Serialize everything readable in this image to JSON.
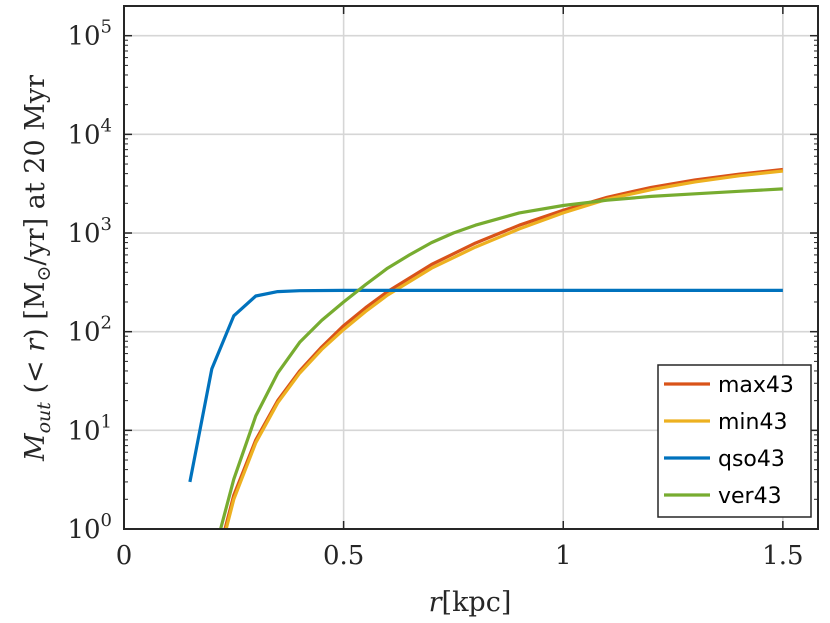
{
  "chart_data": {
    "type": "line",
    "x_scale": "linear",
    "y_scale": "log",
    "xlim": [
      0,
      1.58
    ],
    "ylim": [
      1,
      200000
    ],
    "grid": true,
    "legend_position": "bottom-right",
    "xlabel": "r[kpc]",
    "ylabel": "Ṁout (< r) [M⊙/yr] at 20 Myr",
    "x_ticks": [
      {
        "value": 0,
        "label": "0"
      },
      {
        "value": 0.5,
        "label": "0.5"
      },
      {
        "value": 1,
        "label": "1"
      },
      {
        "value": 1.5,
        "label": "1.5"
      }
    ],
    "y_ticks": [
      {
        "value": 1,
        "exp": "0"
      },
      {
        "value": 10,
        "exp": "1"
      },
      {
        "value": 100,
        "exp": "2"
      },
      {
        "value": 1000,
        "exp": "3"
      },
      {
        "value": 10000,
        "exp": "4"
      },
      {
        "value": 100000,
        "exp": "5"
      }
    ],
    "series": [
      {
        "name": "max43",
        "color": "#D95319",
        "x": [
          0.23,
          0.25,
          0.3,
          0.35,
          0.4,
          0.45,
          0.5,
          0.55,
          0.6,
          0.7,
          0.8,
          0.9,
          1.0,
          1.1,
          1.2,
          1.3,
          1.4,
          1.5
        ],
        "y": [
          1.0,
          2.2,
          8.0,
          20,
          40,
          70,
          115,
          175,
          255,
          480,
          790,
          1200,
          1700,
          2300,
          2900,
          3450,
          3950,
          4400
        ]
      },
      {
        "name": "min43",
        "color": "#EDB120",
        "x": [
          0.23,
          0.25,
          0.3,
          0.35,
          0.4,
          0.45,
          0.5,
          0.55,
          0.6,
          0.7,
          0.8,
          0.9,
          1.0,
          1.1,
          1.2,
          1.3,
          1.4,
          1.5
        ],
        "y": [
          0.9,
          2.0,
          7.5,
          19,
          38,
          66,
          105,
          160,
          235,
          440,
          720,
          1100,
          1600,
          2200,
          2750,
          3300,
          3800,
          4250
        ]
      },
      {
        "name": "qso43",
        "color": "#0072BD",
        "x": [
          0.15,
          0.2,
          0.25,
          0.3,
          0.35,
          0.4,
          0.5,
          0.6,
          0.8,
          1.0,
          1.2,
          1.4,
          1.5
        ],
        "y": [
          3.0,
          42,
          145,
          230,
          255,
          260,
          262,
          262,
          262,
          262,
          262,
          262,
          262
        ]
      },
      {
        "name": "ver43",
        "color": "#77AC30",
        "x": [
          0.22,
          0.25,
          0.3,
          0.35,
          0.4,
          0.45,
          0.5,
          0.55,
          0.6,
          0.65,
          0.7,
          0.75,
          0.8,
          0.9,
          1.0,
          1.1,
          1.2,
          1.3,
          1.4,
          1.5
        ],
        "y": [
          1.0,
          3.2,
          14,
          38,
          78,
          130,
          200,
          300,
          440,
          600,
          800,
          1000,
          1200,
          1600,
          1900,
          2150,
          2350,
          2500,
          2650,
          2800
        ]
      }
    ]
  }
}
